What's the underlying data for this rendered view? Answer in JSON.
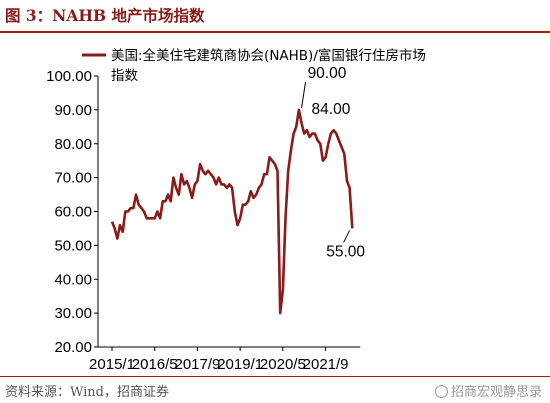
{
  "figure": {
    "title": "图 3：NAHB 地产市场指数",
    "source": "资料来源：Wind，招商证券",
    "watermark": "招商宏观静思录"
  },
  "colors": {
    "line": "#8b1a1a",
    "rule": "#9c1f1f",
    "text": "#000000"
  },
  "chart_data": {
    "type": "line",
    "title": "",
    "xlabel": "",
    "ylabel": "",
    "ylim": [
      20,
      100
    ],
    "yticks": [
      "20.00",
      "30.00",
      "40.00",
      "50.00",
      "60.00",
      "70.00",
      "80.00",
      "90.00",
      "100.00"
    ],
    "xticks": [
      "2015/1",
      "2016/5",
      "2017/9",
      "2019/1",
      "2020/5",
      "2021/9"
    ],
    "legend": {
      "position": "top",
      "entries": [
        "美国:全美住宅建筑商协会(NAHB)/富国银行住房市场指数"
      ]
    },
    "grid": false,
    "annotations": [
      {
        "text": "90.00",
        "date": "2020/12",
        "value": 90
      },
      {
        "text": "84.00",
        "date": "2021/11",
        "value": 84
      },
      {
        "text": "55.00",
        "date": "2022/6",
        "value": 55
      }
    ],
    "series": [
      {
        "name": "美国:全美住宅建筑商协会(NAHB)/富国银行住房市场指数",
        "start": "2015/1",
        "frequency": "monthly",
        "values": [
          57,
          55,
          52,
          56,
          54,
          60,
          60,
          61,
          61,
          65,
          62,
          61,
          60,
          58,
          58,
          58,
          58,
          60,
          58,
          63,
          63,
          65,
          63,
          70,
          67,
          65,
          71,
          68,
          69,
          67,
          64,
          68,
          69,
          74,
          72,
          71,
          72,
          71,
          70,
          68,
          70,
          68,
          68,
          67,
          68,
          67,
          60,
          56,
          58,
          62,
          62,
          63,
          66,
          64,
          65,
          67,
          68,
          71,
          71,
          76,
          75,
          74,
          72,
          30,
          37,
          58,
          72,
          78,
          83,
          85,
          90,
          86,
          83,
          84,
          82,
          83,
          83,
          81,
          80,
          75,
          76,
          80,
          83,
          84,
          83,
          81,
          79,
          77,
          69,
          67,
          55
        ]
      }
    ]
  }
}
